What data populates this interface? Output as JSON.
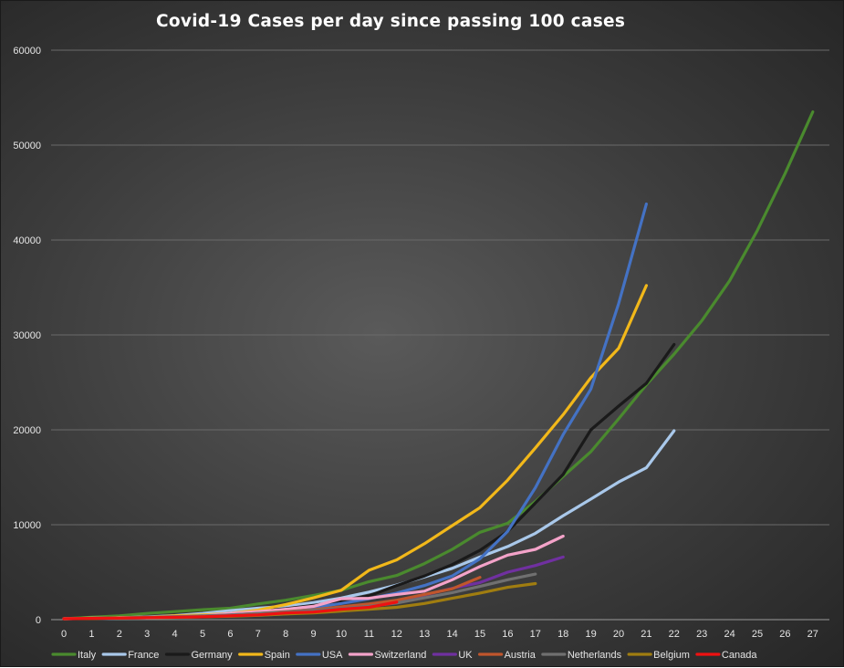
{
  "chart_data": {
    "type": "line",
    "title": "Covid-19 Cases per day since passing 100 cases",
    "xlabel": "",
    "ylabel": "",
    "xlim": [
      0,
      27
    ],
    "ylim": [
      0,
      60000
    ],
    "x_ticks": [
      "0",
      "1",
      "2",
      "3",
      "4",
      "5",
      "6",
      "7",
      "8",
      "9",
      "10",
      "11",
      "12",
      "13",
      "14",
      "15",
      "16",
      "17",
      "18",
      "19",
      "20",
      "21",
      "22",
      "23",
      "24",
      "25",
      "26",
      "27"
    ],
    "y_ticks": [
      "0",
      "10000",
      "20000",
      "30000",
      "40000",
      "50000",
      "60000"
    ],
    "grid": true,
    "legend_position": "bottom",
    "series": [
      {
        "name": "Italy",
        "color": "#4a8a2e",
        "values": [
          100,
          250,
          400,
          650,
          850,
          1050,
          1200,
          1650,
          2050,
          2550,
          3100,
          4000,
          4650,
          5900,
          7400,
          9200,
          10150,
          12450,
          15100,
          17700,
          21150,
          24750,
          27980,
          31500,
          35700,
          41000,
          47000,
          53500
        ]
      },
      {
        "name": "France",
        "color": "#a9c8ea",
        "values": [
          100,
          130,
          190,
          290,
          420,
          650,
          950,
          1200,
          1400,
          1800,
          2280,
          2900,
          3650,
          4500,
          5400,
          6600,
          7700,
          9100,
          10950,
          12700,
          14500,
          16000,
          19900
        ]
      },
      {
        "name": "Germany",
        "color": "#1a1a1a",
        "values": [
          100,
          130,
          160,
          200,
          260,
          400,
          650,
          900,
          1150,
          1500,
          1950,
          2500,
          3600,
          4600,
          5800,
          7300,
          9300,
          12300,
          15300,
          20000,
          22500,
          24900,
          29000
        ]
      },
      {
        "name": "Spain",
        "color": "#f2b81a",
        "values": [
          100,
          150,
          200,
          260,
          400,
          500,
          650,
          1000,
          1600,
          2300,
          3100,
          5200,
          6300,
          8000,
          9900,
          11800,
          14700,
          18100,
          21600,
          25500,
          28600,
          35200
        ]
      },
      {
        "name": "USA",
        "color": "#4472c4",
        "values": [
          100,
          130,
          160,
          210,
          280,
          400,
          500,
          700,
          1000,
          1300,
          1700,
          2200,
          2800,
          3600,
          4600,
          6400,
          9300,
          13900,
          19500,
          24300,
          33300,
          43800
        ]
      },
      {
        "name": "Switzerland",
        "color": "#f4a3c9",
        "values": [
          100,
          150,
          200,
          260,
          330,
          400,
          650,
          850,
          1100,
          1400,
          2200,
          2250,
          2650,
          3000,
          4200,
          5600,
          6800,
          7400,
          8800
        ]
      },
      {
        "name": "UK",
        "color": "#7030a0",
        "values": [
          100,
          120,
          160,
          200,
          270,
          320,
          380,
          450,
          600,
          800,
          1150,
          1550,
          2000,
          2600,
          3300,
          3900,
          5000,
          5700,
          6600
        ]
      },
      {
        "name": "Austria",
        "color": "#c0562c",
        "values": [
          100,
          130,
          180,
          240,
          300,
          360,
          500,
          650,
          850,
          1050,
          1350,
          1650,
          2050,
          2650,
          3250,
          4450
        ]
      },
      {
        "name": "Netherlands",
        "color": "#707070",
        "values": [
          100,
          130,
          180,
          250,
          320,
          390,
          500,
          650,
          800,
          980,
          1150,
          1400,
          1750,
          2300,
          2850,
          3500,
          4200,
          4800
        ]
      },
      {
        "name": "Belgium",
        "color": "#a07d10",
        "values": [
          100,
          120,
          170,
          200,
          240,
          300,
          360,
          450,
          600,
          700,
          900,
          1100,
          1300,
          1700,
          2250,
          2800,
          3400,
          3800
        ]
      },
      {
        "name": "Canada",
        "color": "#ee1111",
        "values": [
          100,
          130,
          160,
          200,
          250,
          300,
          400,
          500,
          700,
          800,
          1100,
          1300,
          1850
        ]
      }
    ]
  }
}
